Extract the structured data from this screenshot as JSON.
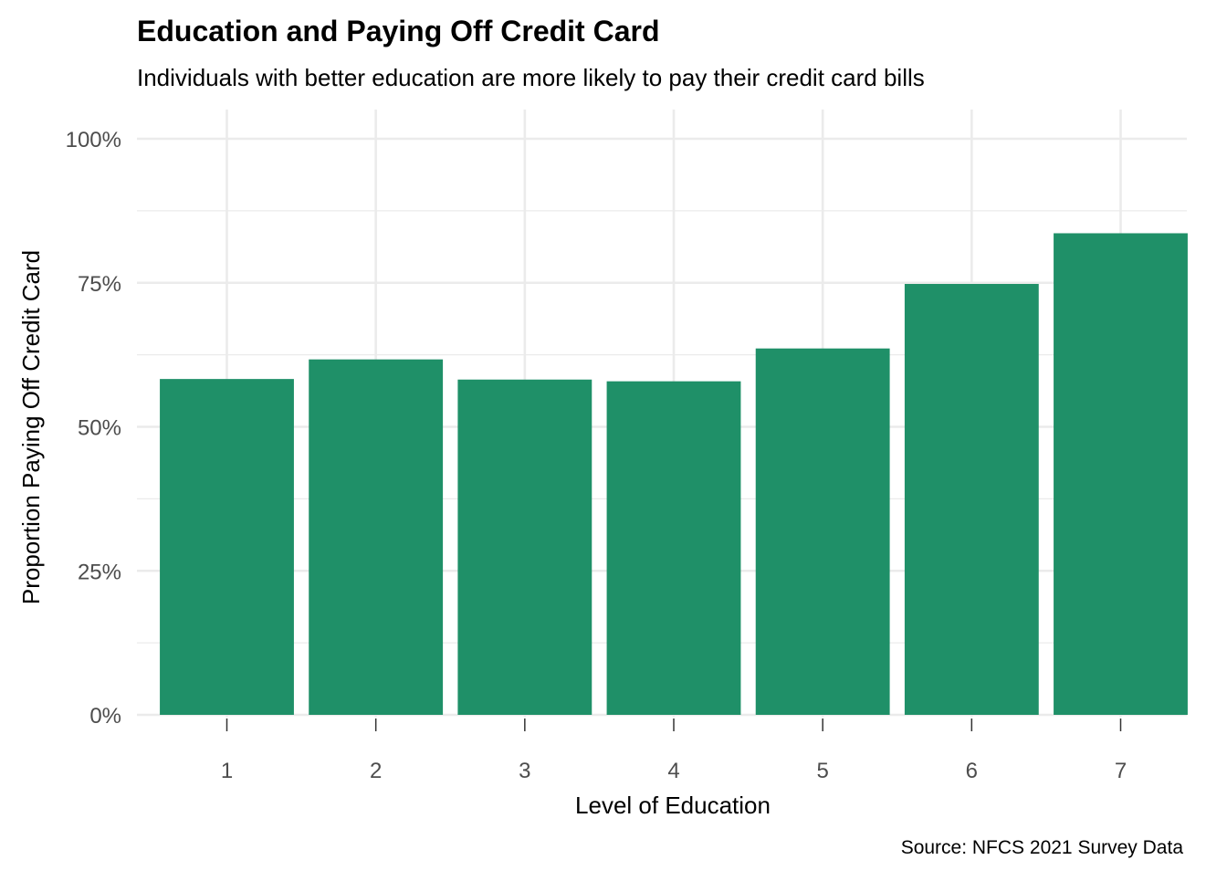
{
  "chart_data": {
    "type": "bar",
    "title": "Education and Paying Off Credit Card",
    "subtitle": "Individuals with better education are more likely to pay their credit card bills",
    "xlabel": "Level of Education",
    "ylabel": "Proportion Paying Off Credit Card",
    "caption": "Source: NFCS 2021 Survey Data",
    "categories": [
      "1",
      "2",
      "3",
      "4",
      "5",
      "6",
      "7"
    ],
    "values": [
      58.3,
      61.7,
      58.2,
      57.9,
      63.6,
      74.8,
      83.6
    ],
    "ylim": [
      0,
      100
    ],
    "y_ticks": [
      0,
      25,
      50,
      75,
      100
    ],
    "y_tick_labels": [
      "0%",
      "25%",
      "50%",
      "75%",
      "100%"
    ],
    "bar_color": "#1f9068",
    "grid": true
  }
}
